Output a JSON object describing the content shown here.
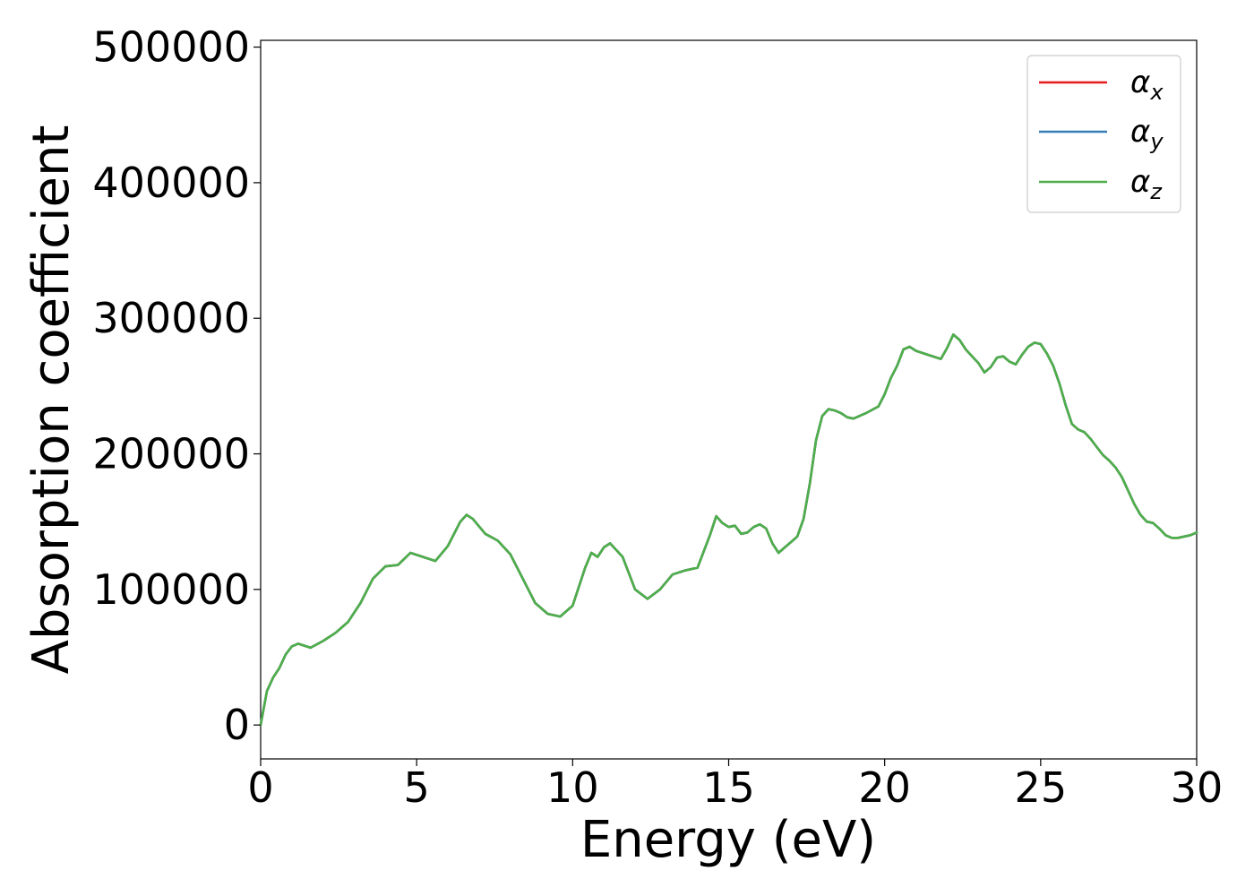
{
  "chart_data": {
    "type": "line",
    "title": "",
    "xlabel": "Energy (eV)",
    "ylabel": "Absorption coefficient",
    "xlim": [
      0,
      30
    ],
    "ylim": [
      -25000,
      505000
    ],
    "x_ticks": [
      "0",
      "5",
      "10",
      "15",
      "20",
      "25",
      "30"
    ],
    "y_ticks": [
      "0",
      "100000",
      "200000",
      "300000",
      "400000",
      "500000"
    ],
    "grid": false,
    "legend_position": "top-right",
    "legend": [
      {
        "symbol": "α",
        "sub": "x",
        "color": "#e41a1c"
      },
      {
        "symbol": "α",
        "sub": "y",
        "color": "#377eb8"
      },
      {
        "symbol": "α",
        "sub": "z",
        "color": "#4daf4a"
      }
    ],
    "x": [
      0,
      0.2,
      0.4,
      0.6,
      0.8,
      1.0,
      1.2,
      1.6,
      2.0,
      2.4,
      2.8,
      3.2,
      3.6,
      4.0,
      4.4,
      4.8,
      5.2,
      5.6,
      6.0,
      6.4,
      6.6,
      6.8,
      7.2,
      7.6,
      8.0,
      8.4,
      8.8,
      9.2,
      9.6,
      10.0,
      10.4,
      10.6,
      10.8,
      11.0,
      11.2,
      11.6,
      12.0,
      12.4,
      12.8,
      13.2,
      13.6,
      14.0,
      14.4,
      14.6,
      14.8,
      15.0,
      15.2,
      15.4,
      15.6,
      15.8,
      16.0,
      16.2,
      16.4,
      16.6,
      16.8,
      17.0,
      17.2,
      17.4,
      17.6,
      17.8,
      18.0,
      18.2,
      18.4,
      18.6,
      18.8,
      19.0,
      19.4,
      19.8,
      20.0,
      20.2,
      20.4,
      20.6,
      20.8,
      21.0,
      21.4,
      21.8,
      22.0,
      22.2,
      22.4,
      22.6,
      22.8,
      23.0,
      23.2,
      23.4,
      23.6,
      23.8,
      24.0,
      24.2,
      24.4,
      24.6,
      24.8,
      25.0,
      25.2,
      25.4,
      25.6,
      25.8,
      26.0,
      26.2,
      26.4,
      26.6,
      26.8,
      27.0,
      27.2,
      27.4,
      27.6,
      27.8,
      28.0,
      28.2,
      28.4,
      28.6,
      28.8,
      29.0,
      29.2,
      29.4,
      29.6,
      29.8,
      30.0
    ],
    "series": [
      {
        "name": "α_x",
        "color": "#e41a1c",
        "values": [
          0,
          25000,
          35000,
          42000,
          52000,
          58000,
          60000,
          57000,
          62000,
          68000,
          76000,
          90000,
          108000,
          117000,
          118000,
          127000,
          124000,
          121000,
          132000,
          150000,
          155000,
          152000,
          141000,
          136000,
          126000,
          108000,
          90000,
          82000,
          80000,
          88000,
          116000,
          127000,
          124000,
          131000,
          134000,
          124000,
          100000,
          93000,
          100000,
          111000,
          114000,
          116000,
          140000,
          154000,
          149000,
          146000,
          147000,
          141000,
          142000,
          146000,
          148000,
          145000,
          134000,
          127000,
          131000,
          135000,
          139000,
          152000,
          178000,
          210000,
          228000,
          233000,
          232000,
          230000,
          227000,
          226000,
          230000,
          235000,
          244000,
          256000,
          265000,
          277000,
          279000,
          276000,
          273000,
          270000,
          278000,
          288000,
          284000,
          277000,
          272000,
          267000,
          260000,
          264000,
          271000,
          272000,
          268000,
          266000,
          273000,
          279000,
          282000,
          281000,
          274000,
          265000,
          252000,
          236000,
          222000,
          218000,
          216000,
          211000,
          205000,
          199000,
          195000,
          190000,
          183000,
          173000,
          163000,
          155000,
          150000,
          149000,
          145000,
          140000,
          138000,
          138000,
          139000,
          140000,
          142000
        ]
      },
      {
        "name": "α_y",
        "color": "#377eb8",
        "values": [
          0,
          25000,
          35000,
          42000,
          52000,
          58000,
          60000,
          57000,
          62000,
          68000,
          76000,
          90000,
          108000,
          117000,
          118000,
          127000,
          124000,
          121000,
          132000,
          150000,
          155000,
          152000,
          141000,
          136000,
          126000,
          108000,
          90000,
          82000,
          80000,
          88000,
          116000,
          127000,
          124000,
          131000,
          134000,
          124000,
          100000,
          93000,
          100000,
          111000,
          114000,
          116000,
          140000,
          154000,
          149000,
          146000,
          147000,
          141000,
          142000,
          146000,
          148000,
          145000,
          134000,
          127000,
          131000,
          135000,
          139000,
          152000,
          178000,
          210000,
          228000,
          233000,
          232000,
          230000,
          227000,
          226000,
          230000,
          235000,
          244000,
          256000,
          265000,
          277000,
          279000,
          276000,
          273000,
          270000,
          278000,
          288000,
          284000,
          277000,
          272000,
          267000,
          260000,
          264000,
          271000,
          272000,
          268000,
          266000,
          273000,
          279000,
          282000,
          281000,
          274000,
          265000,
          252000,
          236000,
          222000,
          218000,
          216000,
          211000,
          205000,
          199000,
          195000,
          190000,
          183000,
          173000,
          163000,
          155000,
          150000,
          149000,
          145000,
          140000,
          138000,
          138000,
          139000,
          140000,
          142000
        ]
      },
      {
        "name": "α_z",
        "color": "#4daf4a",
        "values": [
          0,
          25000,
          35000,
          42000,
          52000,
          58000,
          60000,
          57000,
          62000,
          68000,
          76000,
          90000,
          108000,
          117000,
          118000,
          127000,
          124000,
          121000,
          132000,
          150000,
          155000,
          152000,
          141000,
          136000,
          126000,
          108000,
          90000,
          82000,
          80000,
          88000,
          116000,
          127000,
          124000,
          131000,
          134000,
          124000,
          100000,
          93000,
          100000,
          111000,
          114000,
          116000,
          140000,
          154000,
          149000,
          146000,
          147000,
          141000,
          142000,
          146000,
          148000,
          145000,
          134000,
          127000,
          131000,
          135000,
          139000,
          152000,
          178000,
          210000,
          228000,
          233000,
          232000,
          230000,
          227000,
          226000,
          230000,
          235000,
          244000,
          256000,
          265000,
          277000,
          279000,
          276000,
          273000,
          270000,
          278000,
          288000,
          284000,
          277000,
          272000,
          267000,
          260000,
          264000,
          271000,
          272000,
          268000,
          266000,
          273000,
          279000,
          282000,
          281000,
          274000,
          265000,
          252000,
          236000,
          222000,
          218000,
          216000,
          211000,
          205000,
          199000,
          195000,
          190000,
          183000,
          173000,
          163000,
          155000,
          150000,
          149000,
          145000,
          140000,
          138000,
          138000,
          139000,
          140000,
          142000
        ]
      }
    ]
  }
}
